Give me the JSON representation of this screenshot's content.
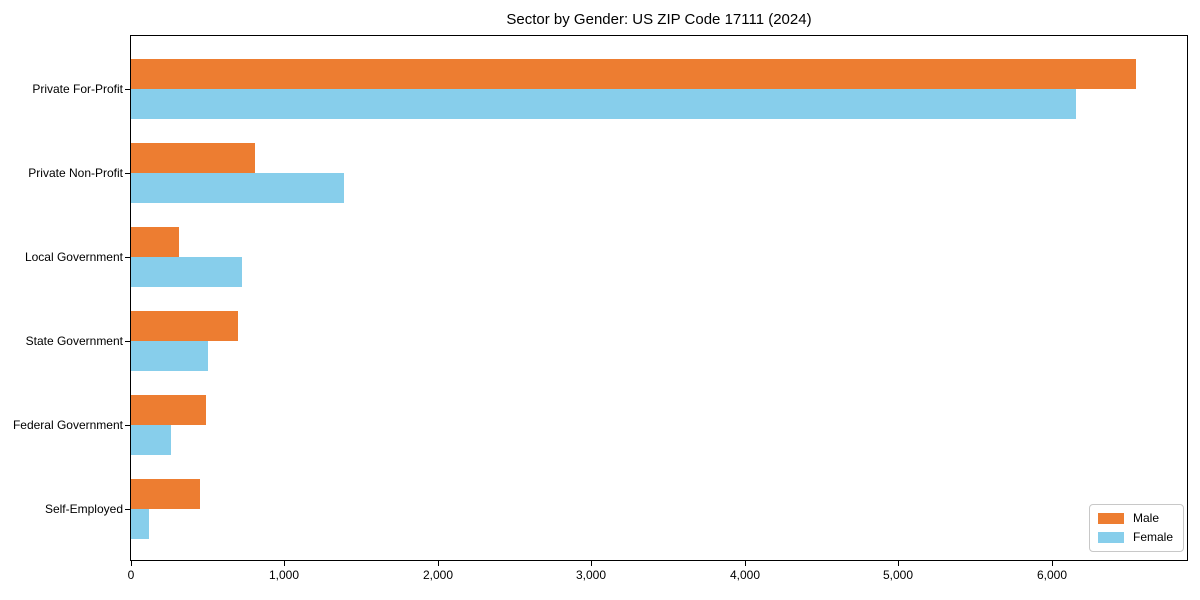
{
  "title": "Sector by Gender: US ZIP Code 17111 (2024)",
  "chart_data": {
    "type": "bar",
    "orientation": "horizontal",
    "title": "Sector by Gender: US ZIP Code 17111 (2024)",
    "categories": [
      "Private For-Profit",
      "Private Non-Profit",
      "Local Government",
      "State Government",
      "Federal Government",
      "Self-Employed"
    ],
    "series": [
      {
        "name": "Male",
        "color": "#ED7D31",
        "values": [
          6550,
          810,
          310,
          700,
          490,
          450
        ]
      },
      {
        "name": "Female",
        "color": "#87CEEB",
        "values": [
          6160,
          1390,
          720,
          500,
          260,
          120
        ]
      }
    ],
    "xlabel": "",
    "ylabel": "",
    "xlim": [
      0,
      6880
    ],
    "xticks": [
      0,
      1000,
      2000,
      3000,
      4000,
      5000,
      6000
    ],
    "xtick_labels": [
      "0",
      "1,000",
      "2,000",
      "3,000",
      "4,000",
      "5,000",
      "6,000"
    ],
    "grid": false,
    "legend_position": "lower right"
  }
}
